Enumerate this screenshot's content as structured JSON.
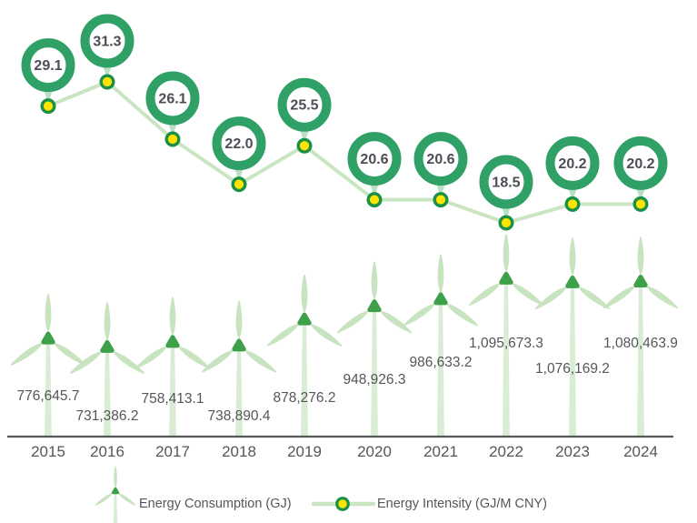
{
  "chart_data": {
    "type": "combo",
    "categories": [
      "2015",
      "2016",
      "2017",
      "2018",
      "2019",
      "2020",
      "2021",
      "2022",
      "2023",
      "2024"
    ],
    "series": [
      {
        "name": "Energy Consumption (GJ)",
        "type": "pictorial-bar",
        "marker": "wind-turbine",
        "values": [
          776645.7,
          731386.2,
          758413.1,
          738890.4,
          878276.2,
          948926.3,
          986633.2,
          1095673.3,
          1076169.2,
          1080463.9
        ],
        "labels": [
          "776,645.7",
          "731,386.2",
          "758,413.1",
          "738,890.4",
          "878,276.2",
          "948,926.3",
          "986,633.2",
          "1,095,673.3",
          "1,076,169.2",
          "1,080,463.9"
        ]
      },
      {
        "name": "Energy Intensity (GJ/M CNY)",
        "type": "line",
        "marker": "ring-badge",
        "values": [
          29.1,
          31.3,
          26.1,
          22.0,
          25.5,
          20.6,
          20.6,
          18.5,
          20.2,
          20.2
        ],
        "labels": [
          "29.1",
          "31.3",
          "26.1",
          "22.0",
          "25.5",
          "20.6",
          "20.6",
          "18.5",
          "20.2",
          "20.2"
        ]
      }
    ],
    "legend": [
      {
        "label": "Energy Consumption (GJ)",
        "icon": "wind-turbine-icon"
      },
      {
        "label": "Energy Intensity (GJ/M CNY)",
        "icon": "line-dot-icon"
      }
    ],
    "legend_position": "bottom",
    "grid": false,
    "y_axes_visible": false,
    "x_axis": {
      "baseline": true
    }
  },
  "colors": {
    "ring_green": "#2FA066",
    "pointer_green": "#B9DFC5",
    "line_green": "#C9E5C2",
    "dot_yellow": "#FFE400",
    "dot_border_green": "#1B9147",
    "hub_green": "#3FA04A",
    "blade_green": "#C7E3C0",
    "tower_green": "#D8EDD3",
    "badge_text": "#4C4D55",
    "label_gray": "#55565A",
    "axis_gray": "#56575B",
    "background": "#FFFFFF"
  }
}
